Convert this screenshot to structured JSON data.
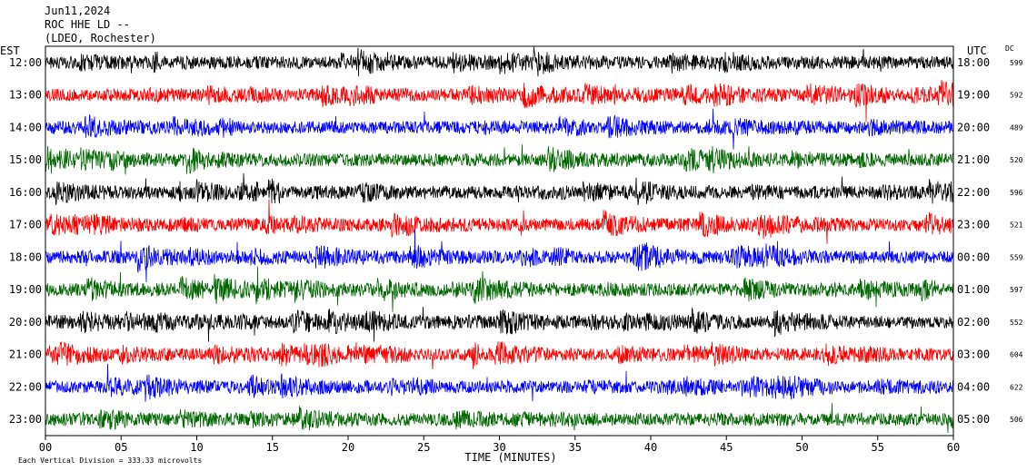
{
  "header": {
    "date": "Jun11,2024",
    "station": "ROC HHE LD --",
    "network": "(LDEO, Rochester)"
  },
  "labels": {
    "left_zone": "EST",
    "right_zone": "UTC",
    "dc_header": "DC",
    "xlabel": "TIME (MINUTES)",
    "footnote": "Each Vertical Division =  333.33 microvolts"
  },
  "chart_data": {
    "type": "line",
    "title": "",
    "xlabel": "TIME (MINUTES)",
    "xlim": [
      0,
      60
    ],
    "x_ticks": [
      "00",
      "05",
      "10",
      "15",
      "20",
      "25",
      "30",
      "35",
      "40",
      "45",
      "50",
      "55",
      "60"
    ],
    "grid": false,
    "color_cycle": [
      "#000000",
      "#ff0000",
      "#0000ff",
      "#006600"
    ],
    "rows": [
      {
        "est": "12:00",
        "utc": "18:00",
        "dc": "599"
      },
      {
        "est": "13:00",
        "utc": "19:00",
        "dc": "592"
      },
      {
        "est": "14:00",
        "utc": "20:00",
        "dc": "489"
      },
      {
        "est": "15:00",
        "utc": "21:00",
        "dc": "520"
      },
      {
        "est": "16:00",
        "utc": "22:00",
        "dc": "596"
      },
      {
        "est": "17:00",
        "utc": "23:00",
        "dc": "521"
      },
      {
        "est": "18:00",
        "utc": "00:00",
        "dc": "559"
      },
      {
        "est": "19:00",
        "utc": "01:00",
        "dc": "597"
      },
      {
        "est": "20:00",
        "utc": "02:00",
        "dc": "552"
      },
      {
        "est": "21:00",
        "utc": "03:00",
        "dc": "604"
      },
      {
        "est": "22:00",
        "utc": "04:00",
        "dc": "622"
      },
      {
        "est": "23:00",
        "utc": "05:00",
        "dc": "506"
      }
    ]
  }
}
